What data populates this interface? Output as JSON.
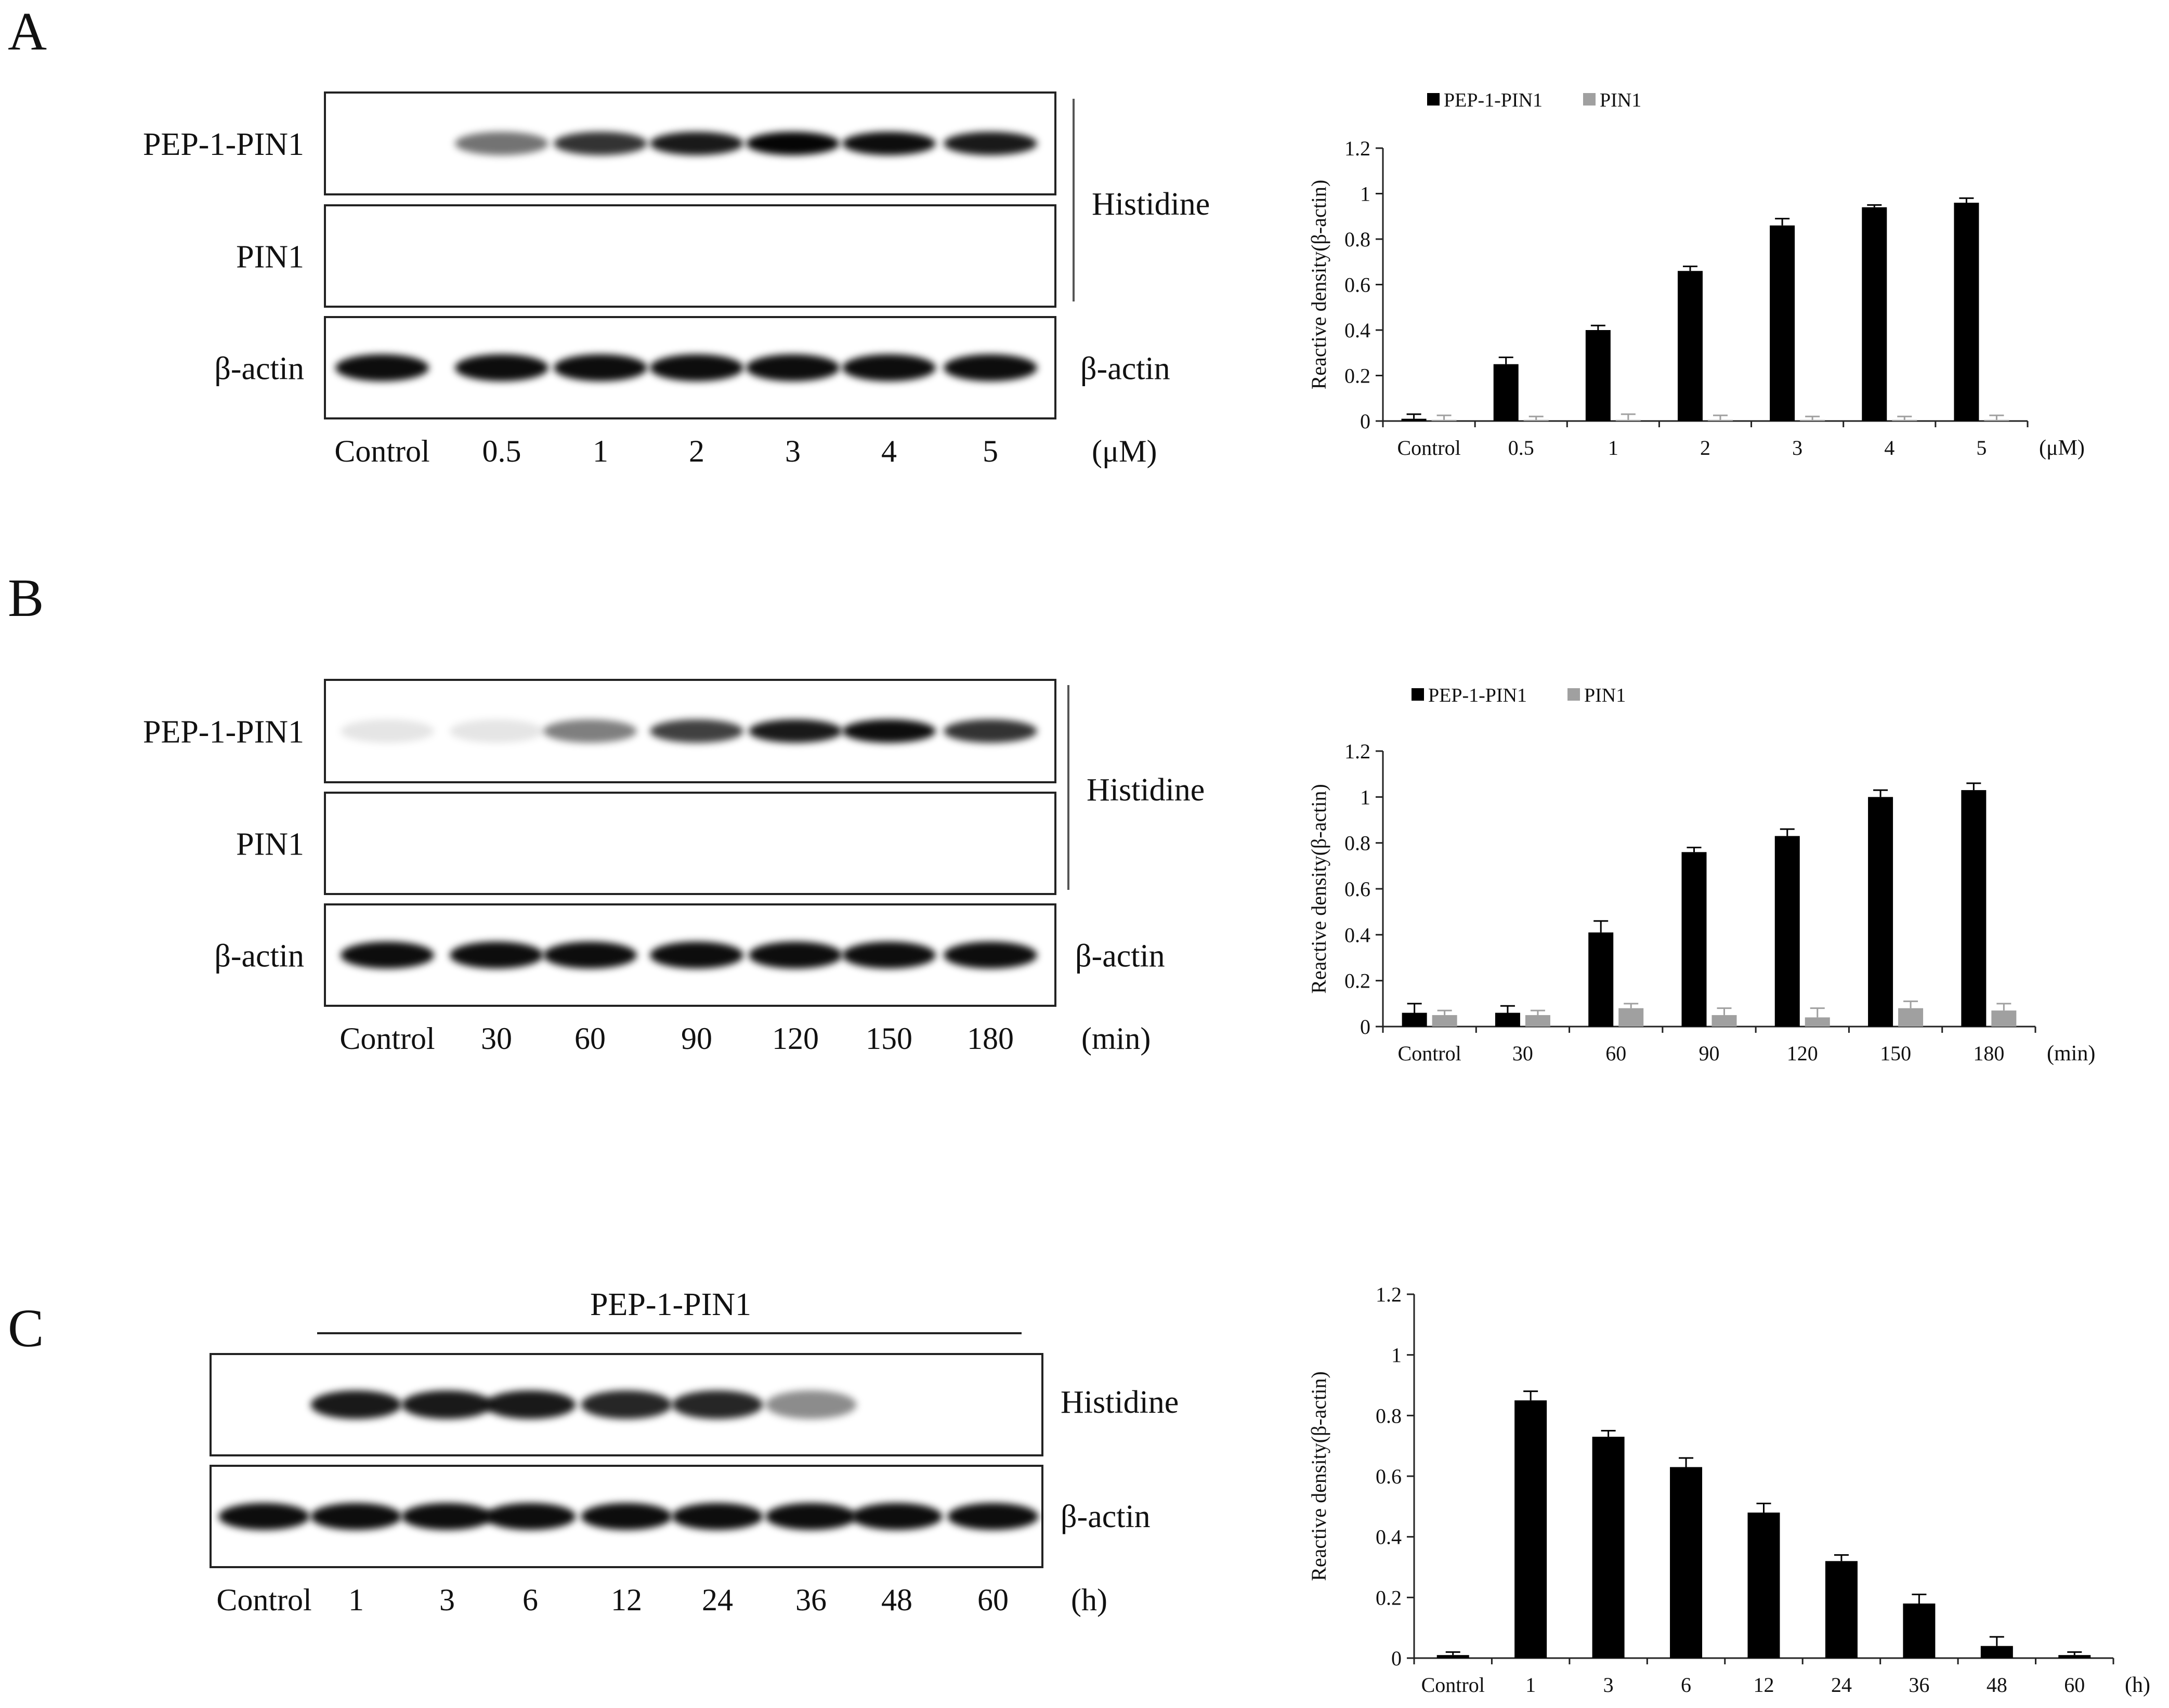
{
  "panels": [
    {
      "letter": "A",
      "blot": {
        "rows": [
          {
            "label": "PEP-1-PIN1",
            "bands": [
              0.0,
              0.55,
              0.8,
              0.9,
              0.98,
              0.95,
              0.9
            ]
          },
          {
            "label": "PIN1",
            "bands": [
              0,
              0,
              0,
              0,
              0,
              0,
              0
            ]
          },
          {
            "label": "β-actin",
            "bands": [
              0.95,
              0.95,
              0.95,
              0.95,
              0.95,
              0.95,
              0.95
            ]
          }
        ],
        "bracket_label": "Histidine",
        "top_label": "",
        "lanes": [
          "Control",
          "0.5",
          "1",
          "2",
          "3",
          "4",
          "5"
        ],
        "unit": "(μM)"
      }
    },
    {
      "letter": "B",
      "blot": {
        "rows": [
          {
            "label": "PEP-1-PIN1",
            "bands": [
              0.1,
              0.1,
              0.5,
              0.75,
              0.9,
              0.95,
              0.8
            ]
          },
          {
            "label": "PIN1",
            "bands": [
              0,
              0,
              0,
              0,
              0,
              0,
              0
            ]
          },
          {
            "label": "β-actin",
            "bands": [
              0.95,
              0.95,
              0.95,
              0.95,
              0.95,
              0.95,
              0.95
            ]
          }
        ],
        "bracket_label": "Histidine",
        "top_label": "",
        "lanes": [
          "Control",
          "30",
          "60",
          "90",
          "120",
          "150",
          "180"
        ],
        "unit": "(min)"
      }
    },
    {
      "letter": "C",
      "blot": {
        "rows": [
          {
            "label": "",
            "bands": [
              0.0,
              0.9,
              0.9,
              0.9,
              0.85,
              0.85,
              0.45,
              0.0,
              0.0
            ]
          },
          {
            "label": "",
            "bands": [
              0.95,
              0.95,
              0.95,
              0.95,
              0.95,
              0.95,
              0.95,
              0.95,
              0.95
            ]
          }
        ],
        "right_labels": [
          "Histidine",
          "β-actin"
        ],
        "top_label": "PEP-1-PIN1",
        "lanes": [
          "Control",
          "1",
          "3",
          "6",
          "12",
          "24",
          "36",
          "48",
          "60"
        ],
        "unit": "(h)"
      }
    }
  ],
  "chart_data": [
    {
      "type": "bar",
      "categories": [
        "Control",
        "0.5",
        "1",
        "2",
        "3",
        "4",
        "5"
      ],
      "x_unit": "(μM)",
      "series": [
        {
          "name": "PEP-1-PIN1",
          "color": "#000000",
          "values": [
            0.01,
            0.25,
            0.4,
            0.66,
            0.86,
            0.94,
            0.96
          ],
          "errors": [
            0.02,
            0.03,
            0.02,
            0.02,
            0.03,
            0.01,
            0.02
          ]
        },
        {
          "name": "PIN1",
          "color": "#a0a0a0",
          "values": [
            0.005,
            0.005,
            0.005,
            0.005,
            0.005,
            0.005,
            0.005
          ],
          "errors": [
            0.02,
            0.015,
            0.025,
            0.02,
            0.015,
            0.015,
            0.02
          ]
        }
      ],
      "ylabel": "Reactive density(β-actin)",
      "ylim": [
        0,
        1.2
      ],
      "yticks": [
        "0",
        "0.2",
        "0.4",
        "0.6",
        "0.8",
        "1",
        "1.2"
      ],
      "legend": "top",
      "grid": false
    },
    {
      "type": "bar",
      "categories": [
        "Control",
        "30",
        "60",
        "90",
        "120",
        "150",
        "180"
      ],
      "x_unit": "(min)",
      "series": [
        {
          "name": "PEP-1-PIN1",
          "color": "#000000",
          "values": [
            0.06,
            0.06,
            0.41,
            0.76,
            0.83,
            1.0,
            1.03
          ],
          "errors": [
            0.04,
            0.03,
            0.05,
            0.02,
            0.03,
            0.03,
            0.03
          ]
        },
        {
          "name": "PIN1",
          "color": "#a0a0a0",
          "values": [
            0.05,
            0.05,
            0.08,
            0.05,
            0.04,
            0.08,
            0.07
          ],
          "errors": [
            0.02,
            0.02,
            0.02,
            0.03,
            0.04,
            0.03,
            0.03
          ]
        }
      ],
      "ylabel": "Reactive density(β-actin)",
      "ylim": [
        0,
        1.2
      ],
      "yticks": [
        "0",
        "0.2",
        "0.4",
        "0.6",
        "0.8",
        "1",
        "1.2"
      ],
      "legend": "top",
      "grid": false
    },
    {
      "type": "bar",
      "categories": [
        "Control",
        "1",
        "3",
        "6",
        "12",
        "24",
        "36",
        "48",
        "60"
      ],
      "x_unit": "(h)",
      "series": [
        {
          "name": "",
          "color": "#000000",
          "values": [
            0.01,
            0.85,
            0.73,
            0.63,
            0.48,
            0.32,
            0.18,
            0.04,
            0.01
          ],
          "errors": [
            0.01,
            0.03,
            0.02,
            0.03,
            0.03,
            0.02,
            0.03,
            0.03,
            0.01
          ]
        }
      ],
      "ylabel": "Reactive density(β-actin)",
      "ylim": [
        0,
        1.2
      ],
      "yticks": [
        "0",
        "0.2",
        "0.4",
        "0.6",
        "0.8",
        "1",
        "1.2"
      ],
      "legend": "none",
      "grid": false
    }
  ]
}
